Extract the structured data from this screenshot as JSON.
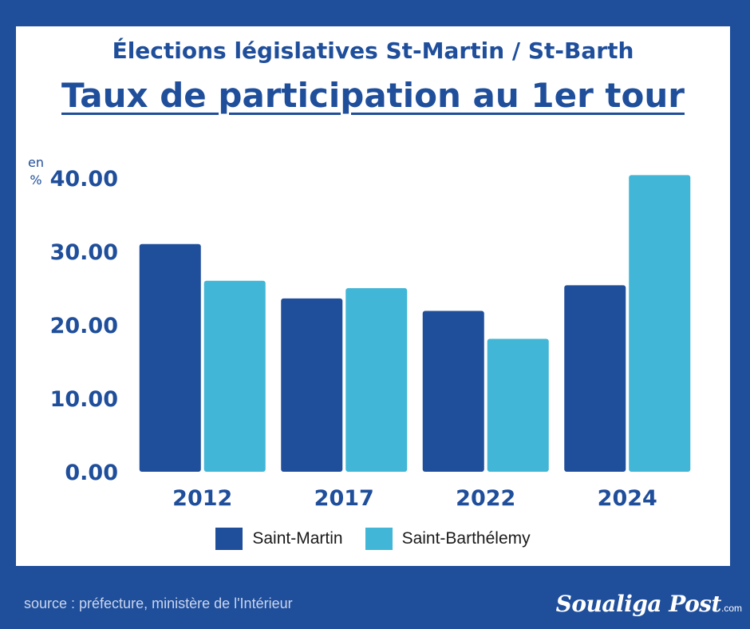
{
  "header": {
    "subtitle": "Élections législatives St-Martin / St-Barth",
    "title": "Taux de participation au 1er tour",
    "unit_line1": "en",
    "unit_line2": "%"
  },
  "footer": {
    "source": "source : préfecture, ministère de l'Intérieur",
    "logo_main": "Soualiga Post",
    "logo_suffix": ".com"
  },
  "colors": {
    "background": "#1f4e9b",
    "text": "#1f4e9b",
    "saint_martin": "#1f4e9b",
    "saint_barthelemy": "#41b6d6"
  },
  "chart_data": {
    "type": "bar",
    "categories": [
      "2012",
      "2017",
      "2022",
      "2024"
    ],
    "series": [
      {
        "name": "Saint-Martin",
        "values": [
          31.0,
          23.6,
          21.9,
          25.4
        ],
        "color": "#1f4e9b"
      },
      {
        "name": "Saint-Barthélemy",
        "values": [
          26.0,
          25.0,
          18.1,
          40.4
        ],
        "color": "#41b6d6"
      }
    ],
    "yticks": [
      "0.00",
      "10.00",
      "20.00",
      "30.00",
      "40.00"
    ],
    "ylim": [
      0,
      40
    ],
    "ylabel": "en %",
    "grid": false,
    "legend": "bottom"
  }
}
